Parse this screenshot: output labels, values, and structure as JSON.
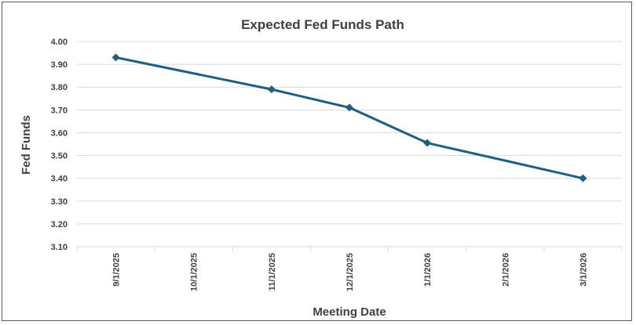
{
  "chart_data": {
    "type": "line",
    "title": "Expected Fed Funds Path",
    "xlabel": "Meeting Date",
    "ylabel": "Fed Funds",
    "categories": [
      "9/1/2025",
      "10/1/2025",
      "11/1/2025",
      "12/1/2025",
      "1/1/2026",
      "2/1/2026",
      "3/1/2026"
    ],
    "ylim": [
      3.1,
      4.0
    ],
    "yticks": [
      "4.00",
      "3.90",
      "3.80",
      "3.70",
      "3.60",
      "3.50",
      "3.40",
      "3.30",
      "3.20",
      "3.10"
    ],
    "grid": true,
    "legend": "none",
    "series": [
      {
        "x": [
          "9/1/2025",
          "11/1/2025",
          "12/1/2025",
          "1/1/2026",
          "3/1/2026"
        ],
        "values": [
          3.93,
          3.79,
          3.71,
          3.555,
          3.4
        ],
        "color": "#1f5f7f",
        "marker": "diamond"
      }
    ]
  }
}
